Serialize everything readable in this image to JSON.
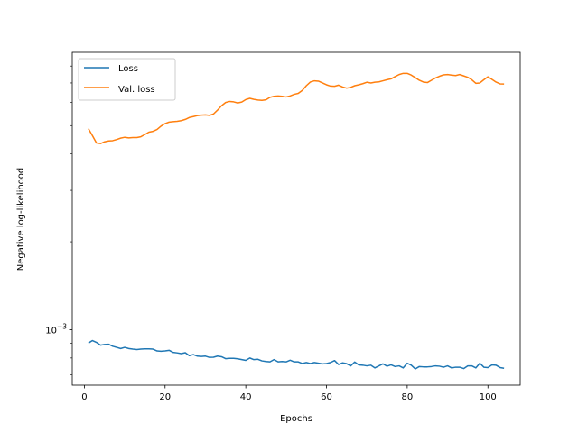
{
  "chart_data": {
    "type": "line",
    "title": "",
    "xlabel": "Epochs",
    "ylabel": "Negative log-likelihood",
    "xlim": [
      -3,
      108
    ],
    "ylim_log10": [
      -3.19,
      -2.05
    ],
    "y_scale": "log",
    "x_ticks": [
      0,
      20,
      40,
      60,
      80,
      100
    ],
    "x_tick_labels": [
      "0",
      "20",
      "40",
      "60",
      "80",
      "100"
    ],
    "y_major_ticks": [
      0.001
    ],
    "y_tick_labels": [
      {
        "base": "10",
        "exp": "−3"
      }
    ],
    "y_minor_ticks": [
      0.0007,
      0.0008,
      0.0009,
      0.002,
      0.003,
      0.004,
      0.005,
      0.006,
      0.007,
      0.008
    ],
    "grid": false,
    "legend_position": "top-left",
    "x": [
      1,
      2,
      3,
      4,
      5,
      6,
      7,
      8,
      9,
      10,
      11,
      12,
      13,
      14,
      15,
      16,
      17,
      18,
      19,
      20,
      21,
      22,
      23,
      24,
      25,
      26,
      27,
      28,
      29,
      30,
      31,
      32,
      33,
      34,
      35,
      36,
      37,
      38,
      39,
      40,
      41,
      42,
      43,
      44,
      45,
      46,
      47,
      48,
      49,
      50,
      51,
      52,
      53,
      54,
      55,
      56,
      57,
      58,
      59,
      60,
      61,
      62,
      63,
      64,
      65,
      66,
      67,
      68,
      69,
      70,
      71,
      72,
      73,
      74,
      75,
      76,
      77,
      78,
      79,
      80,
      81,
      82,
      83,
      84,
      85,
      86,
      87,
      88,
      89,
      90,
      91,
      92,
      93,
      94,
      95,
      96,
      97,
      98,
      99,
      100,
      101,
      102,
      103,
      104
    ],
    "series": [
      {
        "name": "Loss",
        "color": "#1f77b4",
        "values": [
          0.0009,
          0.000918,
          0.000905,
          0.000885,
          0.00089,
          0.000892,
          0.000878,
          0.00087,
          0.000862,
          0.00087,
          0.000862,
          0.000858,
          0.000855,
          0.000858,
          0.00086,
          0.00086,
          0.000858,
          0.000846,
          0.000844,
          0.000846,
          0.00085,
          0.000836,
          0.000833,
          0.000828,
          0.000834,
          0.000815,
          0.000822,
          0.000812,
          0.00081,
          0.000812,
          0.000804,
          0.000805,
          0.000812,
          0.000808,
          0.000796,
          0.000798,
          0.000798,
          0.000795,
          0.00079,
          0.000785,
          0.0008,
          0.00079,
          0.000792,
          0.000782,
          0.000778,
          0.000776,
          0.00079,
          0.000776,
          0.000778,
          0.000776,
          0.000786,
          0.000776,
          0.000776,
          0.000766,
          0.000772,
          0.000766,
          0.000772,
          0.000768,
          0.000764,
          0.000766,
          0.000772,
          0.000784,
          0.00076,
          0.00077,
          0.000765,
          0.000752,
          0.000775,
          0.000758,
          0.000756,
          0.000752,
          0.000756,
          0.00074,
          0.000752,
          0.000764,
          0.00075,
          0.000758,
          0.000748,
          0.000752,
          0.00074,
          0.000768,
          0.000756,
          0.000734,
          0.000748,
          0.000746,
          0.000746,
          0.000748,
          0.000752,
          0.00075,
          0.000744,
          0.000752,
          0.00074,
          0.000744,
          0.000744,
          0.000736,
          0.000752,
          0.000752,
          0.00074,
          0.000768,
          0.000744,
          0.000742,
          0.000758,
          0.000756,
          0.000742,
          0.000738
        ]
      },
      {
        "name": "Val. loss",
        "color": "#ff7f0e",
        "values": [
          0.00488,
          0.00462,
          0.00436,
          0.00434,
          0.0044,
          0.00443,
          0.00444,
          0.00448,
          0.00453,
          0.00456,
          0.00454,
          0.00455,
          0.00455,
          0.00458,
          0.00466,
          0.00475,
          0.00478,
          0.00485,
          0.00498,
          0.00508,
          0.00514,
          0.00516,
          0.00517,
          0.0052,
          0.00525,
          0.00533,
          0.00537,
          0.00541,
          0.00543,
          0.00544,
          0.00542,
          0.00548,
          0.00565,
          0.00585,
          0.006,
          0.00605,
          0.00603,
          0.00598,
          0.00602,
          0.00614,
          0.0062,
          0.00615,
          0.00612,
          0.0061,
          0.00613,
          0.00625,
          0.0063,
          0.00632,
          0.0063,
          0.00627,
          0.00632,
          0.0064,
          0.00645,
          0.0066,
          0.00685,
          0.00705,
          0.00712,
          0.0071,
          0.007,
          0.0069,
          0.00683,
          0.00682,
          0.00688,
          0.00678,
          0.00672,
          0.00676,
          0.00685,
          0.0069,
          0.00696,
          0.00704,
          0.007,
          0.00704,
          0.00706,
          0.00712,
          0.00718,
          0.00723,
          0.00736,
          0.00748,
          0.00755,
          0.00755,
          0.00745,
          0.0073,
          0.00715,
          0.00705,
          0.00702,
          0.00715,
          0.00728,
          0.00738,
          0.00746,
          0.00748,
          0.00745,
          0.00742,
          0.00748,
          0.0074,
          0.00732,
          0.00718,
          0.00698,
          0.007,
          0.00718,
          0.00735,
          0.0072,
          0.00705,
          0.00695,
          0.00694
        ]
      }
    ]
  }
}
